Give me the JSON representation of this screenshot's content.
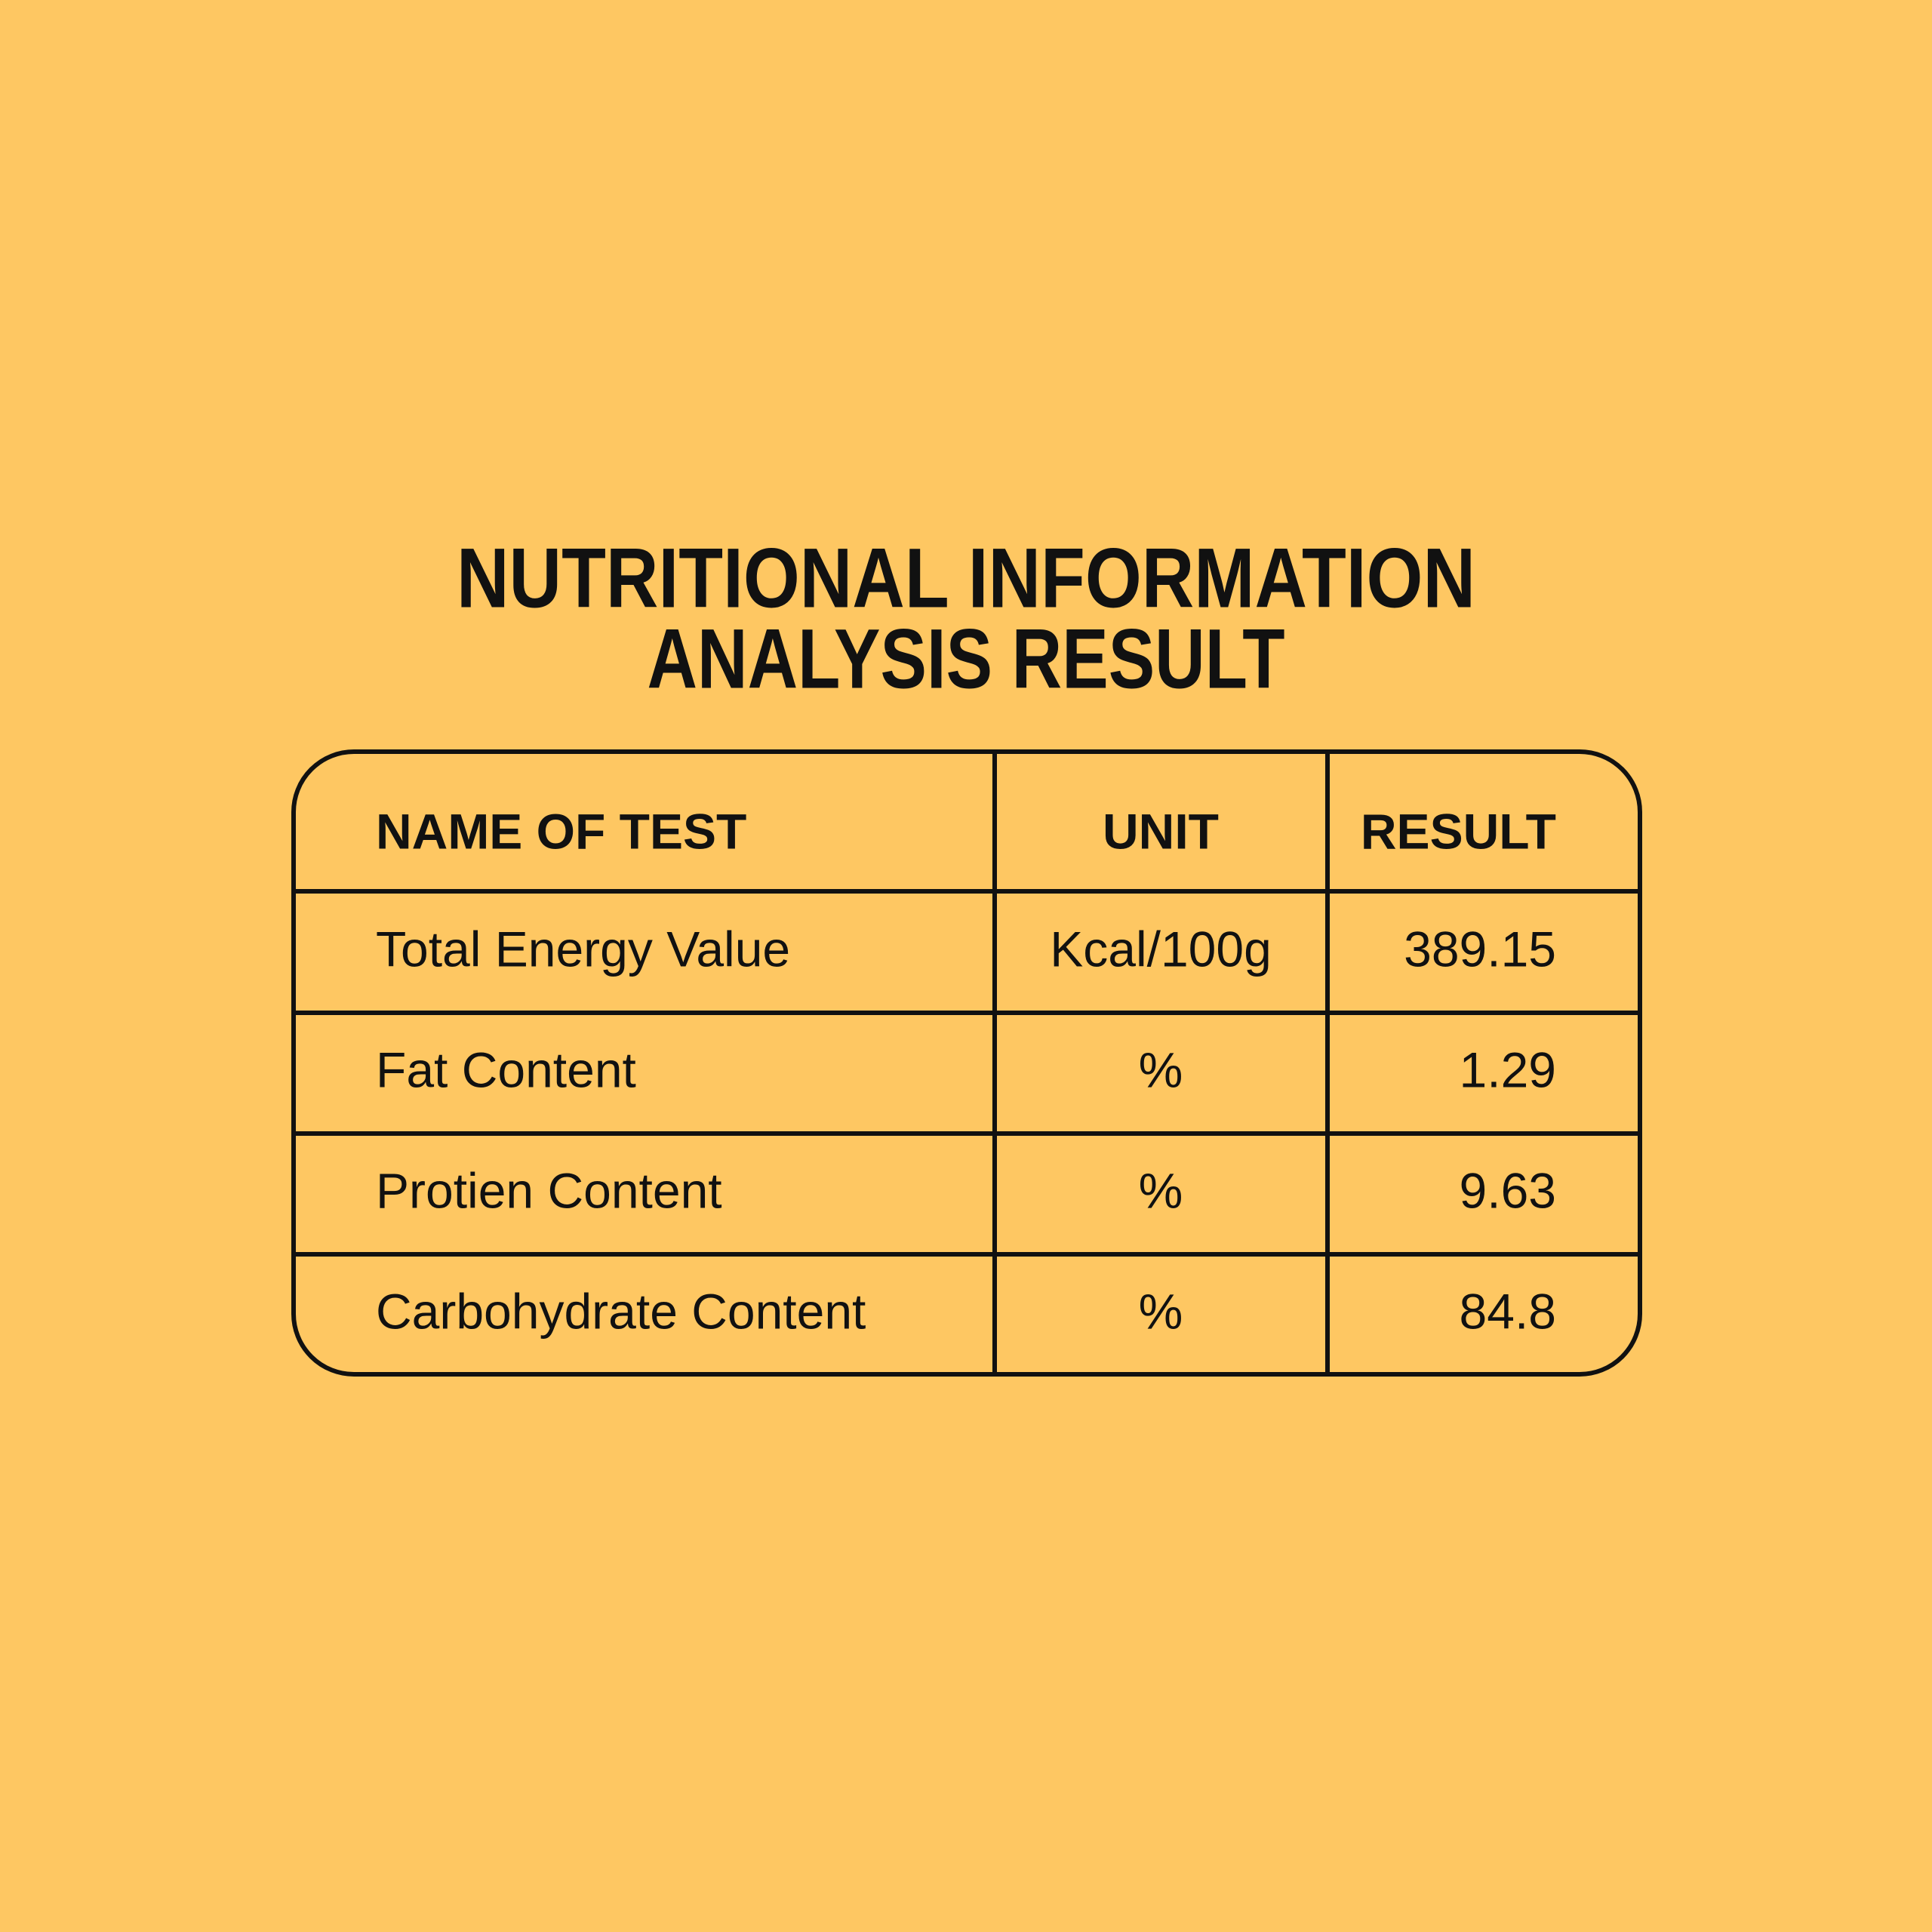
{
  "header": {
    "title": [
      "NUTRITIONAL INFORMATION",
      "ANALYSIS RESULT"
    ]
  },
  "table": {
    "columns": [
      "NAME OF TEST",
      "UNIT",
      "RESULT"
    ],
    "rows": [
      [
        "Total Energy Value",
        "Kcal/100g",
        389.15
      ],
      [
        "Fat Content",
        "%",
        1.29
      ],
      [
        "Protien Content",
        "%",
        9.63
      ],
      [
        "Carbohydrate Content",
        "%",
        84.8
      ]
    ]
  }
}
